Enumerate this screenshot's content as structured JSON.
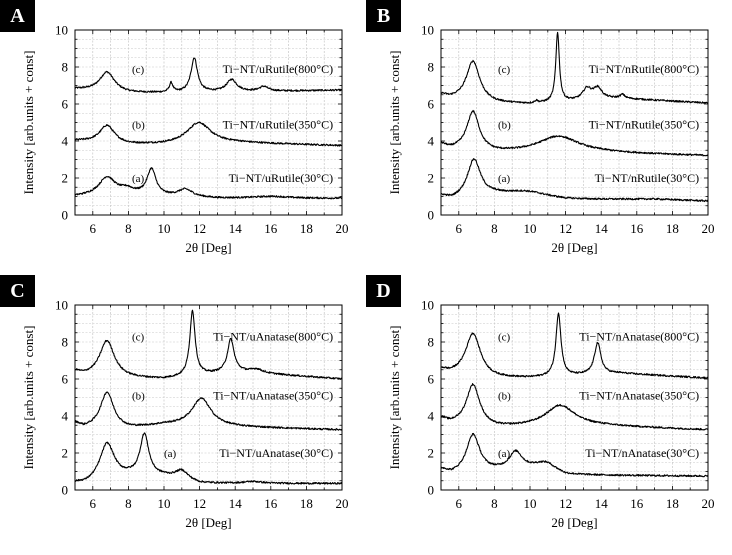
{
  "chart_data": [
    {
      "panel_label": "A",
      "type": "line",
      "xlabel": "2θ [Deg]",
      "ylabel": "Intensity [arb.units + const]",
      "xlim": [
        5,
        20
      ],
      "ylim": [
        0,
        10
      ],
      "xticks": [
        6,
        8,
        10,
        12,
        14,
        16,
        18,
        20
      ],
      "yticks": [
        0,
        2,
        4,
        6,
        8,
        10
      ],
      "grid": true,
      "series": [
        {
          "tag": "(c)",
          "name": "Ti−NT/uRutile(800°C)",
          "tag_y": 7.9,
          "name_y": 7.9,
          "baseline": [
            [
              5,
              6.8
            ],
            [
              8,
              6.6
            ],
            [
              10,
              6.6
            ],
            [
              20,
              6.75
            ]
          ],
          "peaks": [
            [
              6.8,
              1.05,
              0.5
            ],
            [
              10.4,
              0.5,
              0.12
            ],
            [
              11.7,
              1.85,
              0.22
            ],
            [
              13.8,
              0.65,
              0.35
            ],
            [
              15.6,
              0.25,
              0.3
            ]
          ]
        },
        {
          "tag": "(b)",
          "name": "Ti−NT/uRutile(350°C)",
          "tag_y": 4.9,
          "name_y": 4.9,
          "baseline": [
            [
              5,
              4.0
            ],
            [
              8,
              3.8
            ],
            [
              10,
              3.8
            ],
            [
              14,
              3.9
            ],
            [
              20,
              3.75
            ]
          ],
          "peaks": [
            [
              6.8,
              0.95,
              0.5
            ],
            [
              11.95,
              1.15,
              0.8
            ]
          ]
        },
        {
          "tag": "(a)",
          "name": "Ti−NT/uRutile(30°C)",
          "tag_y": 2.0,
          "name_y": 2.0,
          "baseline": [
            [
              5,
              1.0
            ],
            [
              8,
              1.15
            ],
            [
              10,
              1.0
            ],
            [
              13,
              0.9
            ],
            [
              20,
              0.9
            ]
          ],
          "peaks": [
            [
              6.8,
              0.95,
              0.55
            ],
            [
              7.9,
              0.2,
              0.4
            ],
            [
              9.3,
              1.4,
              0.3
            ],
            [
              11.2,
              0.4,
              0.5
            ],
            [
              16,
              0.1,
              1.2
            ]
          ]
        }
      ]
    },
    {
      "panel_label": "B",
      "type": "line",
      "xlabel": "2θ [Deg]",
      "ylabel": "Intensity [arb.units + const]",
      "xlim": [
        5,
        20
      ],
      "ylim": [
        0,
        10
      ],
      "xticks": [
        6,
        8,
        10,
        12,
        14,
        16,
        18,
        20
      ],
      "yticks": [
        0,
        2,
        4,
        6,
        8,
        10
      ],
      "grid": true,
      "series": [
        {
          "tag": "(c)",
          "name": "Ti−NT/nRutile(800°C)",
          "tag_y": 7.9,
          "name_y": 7.9,
          "baseline": [
            [
              5,
              6.5
            ],
            [
              5.5,
              6.3
            ],
            [
              8,
              6.05
            ],
            [
              10,
              6.0
            ],
            [
              15,
              6.3
            ],
            [
              20,
              6.05
            ]
          ],
          "peaks": [
            [
              6.8,
              2.15,
              0.45
            ],
            [
              10.35,
              0.12,
              0.1
            ],
            [
              11.55,
              3.75,
              0.12
            ],
            [
              13.2,
              0.6,
              0.3
            ],
            [
              13.8,
              0.6,
              0.3
            ],
            [
              15.2,
              0.2,
              0.15
            ]
          ]
        },
        {
          "tag": "(b)",
          "name": "Ti−NT/nRutile(350°C)",
          "tag_y": 4.9,
          "name_y": 4.9,
          "baseline": [
            [
              5,
              3.8
            ],
            [
              5.5,
              3.55
            ],
            [
              8,
              3.35
            ],
            [
              10,
              3.35
            ],
            [
              14,
              3.35
            ],
            [
              20,
              3.2
            ]
          ],
          "peaks": [
            [
              6.8,
              2.1,
              0.42
            ],
            [
              11.6,
              0.9,
              1.4
            ]
          ]
        },
        {
          "tag": "(a)",
          "name": "Ti−NT/nRutile(30°C)",
          "tag_y": 2.0,
          "name_y": 2.0,
          "baseline": [
            [
              5,
              1.0
            ],
            [
              5.6,
              0.8
            ],
            [
              8,
              1.0
            ],
            [
              12,
              0.8
            ],
            [
              17,
              0.85
            ],
            [
              20,
              0.75
            ]
          ],
          "peaks": [
            [
              6.85,
              2.05,
              0.45
            ],
            [
              9.8,
              0.35,
              1.6
            ]
          ]
        }
      ]
    },
    {
      "panel_label": "C",
      "type": "line",
      "xlabel": "2θ [Deg]",
      "ylabel": "Intensity [arb.units + const]",
      "xlim": [
        5,
        20
      ],
      "ylim": [
        0,
        10
      ],
      "xticks": [
        6,
        8,
        10,
        12,
        14,
        16,
        18,
        20
      ],
      "yticks": [
        0,
        2,
        4,
        6,
        8,
        10
      ],
      "grid": true,
      "series": [
        {
          "tag": "(c)",
          "name": "Ti−NT/uAnatase(800°C)",
          "tag_y": 8.3,
          "name_y": 8.3,
          "baseline": [
            [
              5,
              6.4
            ],
            [
              5.5,
              6.2
            ],
            [
              8,
              6.05
            ],
            [
              10,
              6.0
            ],
            [
              14,
              6.4
            ],
            [
              20,
              6.0
            ]
          ],
          "peaks": [
            [
              6.8,
              1.95,
              0.5
            ],
            [
              11.6,
              3.5,
              0.18
            ],
            [
              13.75,
              1.75,
              0.22
            ],
            [
              15.2,
              0.2,
              0.4
            ]
          ]
        },
        {
          "tag": "(b)",
          "name": "Ti−NT/uAnatase(350°C)",
          "tag_y": 5.1,
          "name_y": 5.1,
          "baseline": [
            [
              5,
              3.6
            ],
            [
              5.5,
              3.35
            ],
            [
              8,
              3.3
            ],
            [
              10,
              3.5
            ],
            [
              14,
              3.4
            ],
            [
              20,
              3.25
            ]
          ],
          "peaks": [
            [
              6.8,
              1.95,
              0.45
            ],
            [
              12.1,
              1.5,
              0.65
            ]
          ]
        },
        {
          "tag": "(a)",
          "name": "Ti−NT/uAnatase(30°C)",
          "tag_y": 2.0,
          "name_y": 2.0,
          "baseline": [
            [
              5,
              0.35
            ],
            [
              5.6,
              0.3
            ],
            [
              8,
              0.7
            ],
            [
              10,
              0.7
            ],
            [
              12,
              0.35
            ],
            [
              20,
              0.35
            ]
          ],
          "peaks": [
            [
              6.8,
              2.0,
              0.5
            ],
            [
              8.9,
              2.25,
              0.3
            ],
            [
              11.0,
              0.5,
              0.45
            ],
            [
              15.0,
              0.1,
              0.6
            ]
          ]
        }
      ]
    },
    {
      "panel_label": "D",
      "type": "line",
      "xlabel": "2θ [Deg]",
      "ylabel": "Intensity [arb.units + const]",
      "xlim": [
        5,
        20
      ],
      "ylim": [
        0,
        10
      ],
      "xticks": [
        6,
        8,
        10,
        12,
        14,
        16,
        18,
        20
      ],
      "yticks": [
        0,
        2,
        4,
        6,
        8,
        10
      ],
      "grid": true,
      "series": [
        {
          "tag": "(c)",
          "name": "Ti−NT/nAnatase(800°C)",
          "tag_y": 8.3,
          "name_y": 8.3,
          "baseline": [
            [
              5,
              6.5
            ],
            [
              5.5,
              6.3
            ],
            [
              8,
              6.05
            ],
            [
              10,
              6.05
            ],
            [
              15,
              6.3
            ],
            [
              20,
              6.05
            ]
          ],
          "peaks": [
            [
              6.8,
              2.3,
              0.5
            ],
            [
              11.6,
              3.4,
              0.17
            ],
            [
              13.8,
              1.7,
              0.22
            ]
          ]
        },
        {
          "tag": "(b)",
          "name": "Ti−NT/nAnatase(350°C)",
          "tag_y": 5.1,
          "name_y": 5.1,
          "baseline": [
            [
              5,
              3.85
            ],
            [
              5.5,
              3.6
            ],
            [
              8,
              3.35
            ],
            [
              10,
              3.4
            ],
            [
              14,
              3.45
            ],
            [
              20,
              3.25
            ]
          ],
          "peaks": [
            [
              6.8,
              2.2,
              0.45
            ],
            [
              11.7,
              1.15,
              1.0
            ]
          ]
        },
        {
          "tag": "(a)",
          "name": "Ti−NT/nAnatase(30°C)",
          "tag_y": 2.0,
          "name_y": 2.0,
          "baseline": [
            [
              5,
              1.1
            ],
            [
              5.6,
              0.85
            ],
            [
              8,
              1.0
            ],
            [
              11,
              1.1
            ],
            [
              12,
              0.8
            ],
            [
              20,
              0.75
            ]
          ],
          "peaks": [
            [
              6.8,
              2.05,
              0.45
            ],
            [
              9.2,
              0.95,
              0.45
            ],
            [
              10.8,
              0.35,
              0.8
            ]
          ]
        }
      ]
    }
  ]
}
